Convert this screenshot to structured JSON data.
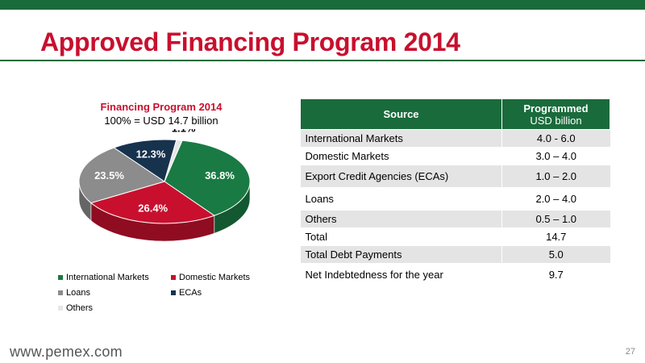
{
  "slide": {
    "title": "Approved Financing Program 2014",
    "footer_url_prefix": "www",
    "footer_url_dot": ".",
    "footer_url_main": "pemex.com",
    "page_number": "27"
  },
  "colors": {
    "brand_green": "#1a6b3b",
    "brand_red": "#c8102e",
    "international": "#1a7a43",
    "domestic": "#c8102e",
    "loans": "#8c8c8c",
    "ecas": "#17324d",
    "others": "#e6e6e6"
  },
  "chart_data": {
    "type": "pie",
    "title": "Financing Program 2014",
    "subtitle": "100% = USD 14.7 billion",
    "slices": [
      {
        "name": "International Markets",
        "value": 36.8,
        "label": "36.8%",
        "color": "#1a7a43"
      },
      {
        "name": "Domestic Markets",
        "value": 26.4,
        "label": "26.4%",
        "color": "#c8102e"
      },
      {
        "name": "Loans",
        "value": 23.5,
        "label": "23.5%",
        "color": "#8c8c8c"
      },
      {
        "name": "ECAs",
        "value": 12.3,
        "label": "12.3%",
        "color": "#17324d"
      },
      {
        "name": "Others",
        "value": 1.1,
        "label": "1.1%",
        "color": "#e6e6e6"
      }
    ],
    "legend": [
      "International Markets",
      "Domestic Markets",
      "Loans",
      "ECAs",
      "Others"
    ],
    "legend_position": "bottom"
  },
  "table": {
    "header_source": "Source",
    "header_programmed": "Programmed",
    "header_unit": "USD billion",
    "rows": [
      {
        "source": "International Markets",
        "value": "4.0 - 6.0"
      },
      {
        "source": "Domestic Markets",
        "value": "3.0 – 4.0"
      },
      {
        "source": "Export Credit Agencies (ECAs)",
        "value": "1.0 – 2.0"
      },
      {
        "source": "Loans",
        "value": "2.0 – 4.0"
      },
      {
        "source": "Others",
        "value": "0.5 – 1.0"
      },
      {
        "source": "Total",
        "value": "14.7"
      },
      {
        "source": "Total Debt Payments",
        "value": "5.0"
      },
      {
        "source": "Net Indebtedness for the year",
        "value": "9.7"
      }
    ]
  }
}
